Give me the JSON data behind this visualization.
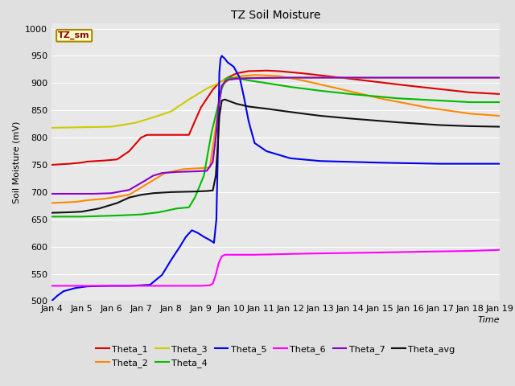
{
  "title": "TZ Soil Moisture",
  "ylabel": "Soil Moisture (mV)",
  "xlabel": "Time",
  "ylim": [
    500,
    1010
  ],
  "yticks": [
    500,
    550,
    600,
    650,
    700,
    750,
    800,
    850,
    900,
    950,
    1000
  ],
  "background_color": "#e0e0e0",
  "plot_bg_color": "#e8e8e8",
  "legend_label": "TZ_sm",
  "series_order": [
    "Theta_1",
    "Theta_2",
    "Theta_3",
    "Theta_4",
    "Theta_5",
    "Theta_6",
    "Theta_7",
    "Theta_avg"
  ],
  "series": {
    "Theta_1": {
      "color": "#dd0000",
      "points": [
        [
          0,
          750
        ],
        [
          30,
          752
        ],
        [
          50,
          754
        ],
        [
          60,
          756
        ],
        [
          90,
          758
        ],
        [
          110,
          760
        ],
        [
          130,
          775
        ],
        [
          150,
          800
        ],
        [
          160,
          805
        ],
        [
          230,
          805
        ],
        [
          250,
          855
        ],
        [
          270,
          888
        ],
        [
          280,
          900
        ],
        [
          295,
          910
        ],
        [
          310,
          918
        ],
        [
          330,
          922
        ],
        [
          360,
          923
        ],
        [
          380,
          922
        ],
        [
          420,
          918
        ],
        [
          500,
          908
        ],
        [
          600,
          895
        ],
        [
          700,
          883
        ],
        [
          750,
          880
        ]
      ]
    },
    "Theta_2": {
      "color": "#ff8800",
      "points": [
        [
          0,
          680
        ],
        [
          40,
          682
        ],
        [
          60,
          685
        ],
        [
          90,
          688
        ],
        [
          130,
          695
        ],
        [
          160,
          715
        ],
        [
          190,
          735
        ],
        [
          220,
          742
        ],
        [
          250,
          744
        ],
        [
          265,
          745
        ],
        [
          275,
          820
        ],
        [
          285,
          895
        ],
        [
          295,
          905
        ],
        [
          310,
          912
        ],
        [
          340,
          915
        ],
        [
          380,
          913
        ],
        [
          420,
          905
        ],
        [
          480,
          890
        ],
        [
          550,
          872
        ],
        [
          630,
          855
        ],
        [
          700,
          844
        ],
        [
          750,
          840
        ]
      ]
    },
    "Theta_3": {
      "color": "#cccc00",
      "points": [
        [
          0,
          818
        ],
        [
          50,
          819
        ],
        [
          100,
          820
        ],
        [
          140,
          827
        ],
        [
          170,
          837
        ],
        [
          200,
          848
        ],
        [
          230,
          870
        ],
        [
          260,
          890
        ],
        [
          280,
          900
        ],
        [
          290,
          906
        ],
        [
          295,
          908
        ],
        [
          310,
          909
        ],
        [
          330,
          910
        ],
        [
          400,
          910
        ],
        [
          500,
          910
        ],
        [
          600,
          910
        ],
        [
          700,
          910
        ],
        [
          750,
          910
        ]
      ]
    },
    "Theta_4": {
      "color": "#00bb00",
      "points": [
        [
          0,
          655
        ],
        [
          50,
          655
        ],
        [
          80,
          656
        ],
        [
          110,
          657
        ],
        [
          150,
          659
        ],
        [
          180,
          663
        ],
        [
          210,
          670
        ],
        [
          230,
          672
        ],
        [
          240,
          690
        ],
        [
          255,
          730
        ],
        [
          268,
          810
        ],
        [
          278,
          855
        ],
        [
          285,
          890
        ],
        [
          292,
          908
        ],
        [
          295,
          910
        ],
        [
          310,
          909
        ],
        [
          330,
          905
        ],
        [
          360,
          900
        ],
        [
          400,
          893
        ],
        [
          450,
          886
        ],
        [
          500,
          880
        ],
        [
          580,
          872
        ],
        [
          650,
          868
        ],
        [
          700,
          865
        ],
        [
          750,
          865
        ]
      ]
    },
    "Theta_5": {
      "color": "#0000ee",
      "points": [
        [
          0,
          500
        ],
        [
          10,
          510
        ],
        [
          20,
          518
        ],
        [
          40,
          524
        ],
        [
          60,
          527
        ],
        [
          100,
          528
        ],
        [
          130,
          528
        ],
        [
          150,
          529
        ],
        [
          165,
          530
        ],
        [
          185,
          548
        ],
        [
          200,
          575
        ],
        [
          215,
          600
        ],
        [
          225,
          618
        ],
        [
          235,
          630
        ],
        [
          245,
          625
        ],
        [
          255,
          618
        ],
        [
          265,
          612
        ],
        [
          272,
          607
        ],
        [
          276,
          650
        ],
        [
          279,
          800
        ],
        [
          281,
          920
        ],
        [
          283,
          945
        ],
        [
          285,
          950
        ],
        [
          290,
          945
        ],
        [
          295,
          938
        ],
        [
          305,
          930
        ],
        [
          315,
          910
        ],
        [
          322,
          875
        ],
        [
          330,
          830
        ],
        [
          340,
          790
        ],
        [
          360,
          775
        ],
        [
          400,
          762
        ],
        [
          450,
          757
        ],
        [
          550,
          754
        ],
        [
          650,
          752
        ],
        [
          750,
          752
        ]
      ]
    },
    "Theta_6": {
      "color": "#ff00ff",
      "points": [
        [
          0,
          528
        ],
        [
          30,
          528
        ],
        [
          60,
          528
        ],
        [
          100,
          528
        ],
        [
          130,
          528
        ],
        [
          160,
          528
        ],
        [
          200,
          528
        ],
        [
          230,
          528
        ],
        [
          250,
          528
        ],
        [
          265,
          529
        ],
        [
          270,
          532
        ],
        [
          275,
          548
        ],
        [
          280,
          570
        ],
        [
          285,
          582
        ],
        [
          290,
          585
        ],
        [
          310,
          585
        ],
        [
          340,
          585
        ],
        [
          380,
          586
        ],
        [
          420,
          587
        ],
        [
          480,
          588
        ],
        [
          540,
          589
        ],
        [
          590,
          590
        ],
        [
          640,
          591
        ],
        [
          700,
          592
        ],
        [
          750,
          594
        ]
      ]
    },
    "Theta_7": {
      "color": "#8800cc",
      "points": [
        [
          0,
          697
        ],
        [
          40,
          697
        ],
        [
          70,
          697
        ],
        [
          100,
          698
        ],
        [
          130,
          704
        ],
        [
          155,
          720
        ],
        [
          170,
          730
        ],
        [
          185,
          735
        ],
        [
          210,
          737
        ],
        [
          240,
          738
        ],
        [
          260,
          739
        ],
        [
          270,
          755
        ],
        [
          275,
          800
        ],
        [
          280,
          860
        ],
        [
          285,
          895
        ],
        [
          290,
          902
        ],
        [
          295,
          906
        ],
        [
          310,
          908
        ],
        [
          330,
          909
        ],
        [
          400,
          910
        ],
        [
          500,
          910
        ],
        [
          600,
          910
        ],
        [
          700,
          910
        ],
        [
          750,
          910
        ]
      ]
    },
    "Theta_avg": {
      "color": "#111111",
      "points": [
        [
          0,
          662
        ],
        [
          30,
          663
        ],
        [
          50,
          664
        ],
        [
          80,
          670
        ],
        [
          110,
          680
        ],
        [
          130,
          690
        ],
        [
          150,
          695
        ],
        [
          170,
          698
        ],
        [
          200,
          700
        ],
        [
          240,
          701
        ],
        [
          260,
          702
        ],
        [
          270,
          703
        ],
        [
          275,
          730
        ],
        [
          278,
          780
        ],
        [
          281,
          840
        ],
        [
          285,
          868
        ],
        [
          290,
          870
        ],
        [
          295,
          868
        ],
        [
          310,
          862
        ],
        [
          330,
          857
        ],
        [
          360,
          853
        ],
        [
          400,
          847
        ],
        [
          450,
          840
        ],
        [
          500,
          835
        ],
        [
          580,
          828
        ],
        [
          650,
          823
        ],
        [
          700,
          821
        ],
        [
          750,
          820
        ]
      ]
    }
  },
  "x_tick_positions": [
    0,
    50,
    100,
    150,
    200,
    250,
    300,
    350,
    400,
    450,
    500,
    550,
    600,
    650,
    700,
    750
  ],
  "x_tick_labels": [
    "Jan 4",
    "Jan 5",
    "Jan 6",
    "Jan 7",
    "Jan 8",
    "Jan 9",
    "Jan 10",
    "Jan 11",
    "Jan 12",
    "Jan 13",
    "Jan 14",
    "Jan 15",
    "Jan 16",
    "Jan 17",
    "Jan 18",
    "Jan 19"
  ],
  "legend_row1": [
    "Theta_1",
    "Theta_2",
    "Theta_3",
    "Theta_4",
    "Theta_5",
    "Theta_6"
  ],
  "legend_row2": [
    "Theta_7",
    "Theta_avg"
  ]
}
